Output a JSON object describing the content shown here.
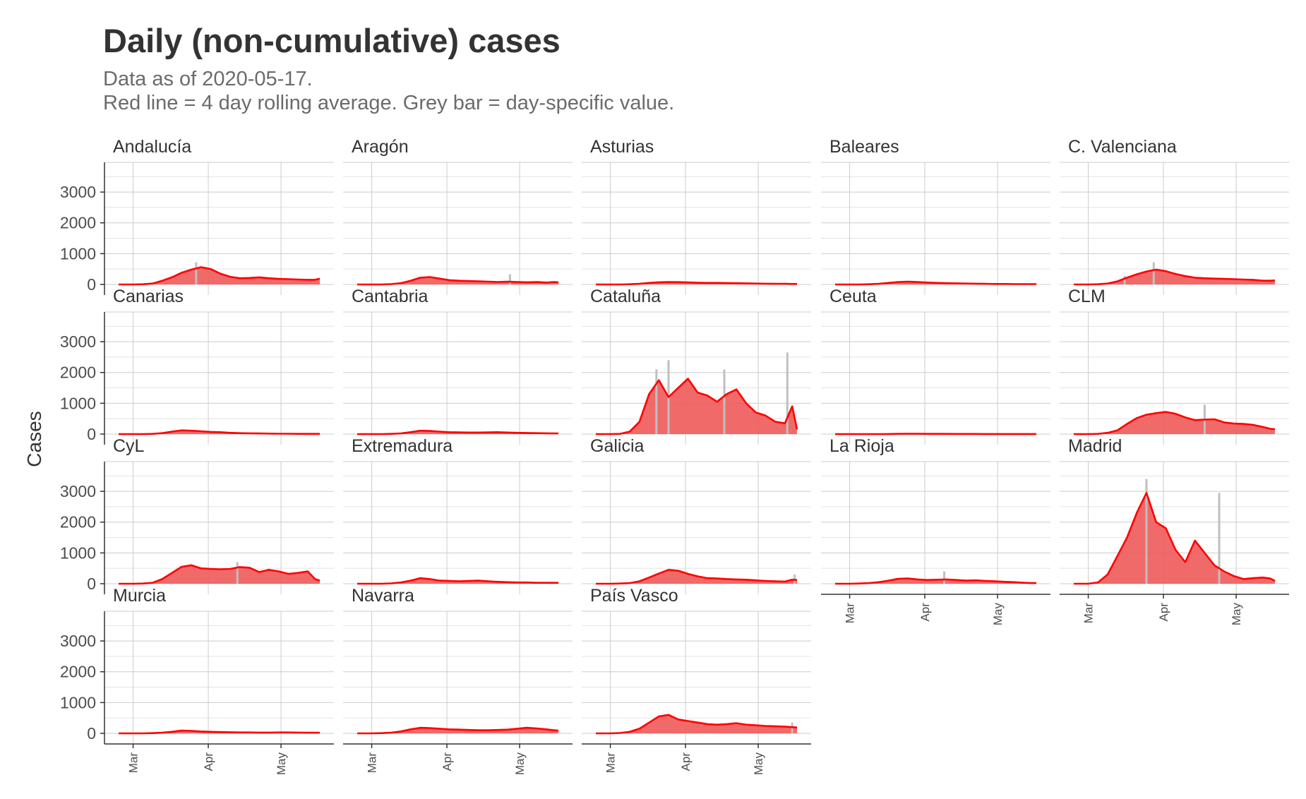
{
  "title": "Daily (non-cumulative) cases",
  "subtitle_line1": "Data as of 2020-05-17.",
  "subtitle_line2": "Red line = 4 day rolling average. Grey bar = day-specific value.",
  "colors": {
    "line": "#ff0000",
    "area": "#ef5a5a",
    "bar": "#bfbfbf",
    "grid": "#cccccc",
    "axis": "#333333",
    "text": "#333333"
  },
  "chart_data": {
    "type": "area",
    "ylabel": "Cases",
    "xlabel": "",
    "ylim": [
      0,
      3500
    ],
    "y_ticks": [
      0,
      1000,
      2000,
      3000
    ],
    "x_range": [
      "2020-02-24",
      "2020-05-17"
    ],
    "x_ticks": [
      {
        "date": "2020-03-01",
        "label": "Mar"
      },
      {
        "date": "2020-04-01",
        "label": "Apr"
      },
      {
        "date": "2020-05-01",
        "label": "May"
      }
    ],
    "grid": true,
    "facet_layout": {
      "columns": 5
    },
    "panel_dates": [
      "2020-02-24",
      "2020-03-01",
      "2020-03-05",
      "2020-03-09",
      "2020-03-13",
      "2020-03-17",
      "2020-03-21",
      "2020-03-25",
      "2020-03-29",
      "2020-04-02",
      "2020-04-06",
      "2020-04-10",
      "2020-04-14",
      "2020-04-18",
      "2020-04-22",
      "2020-04-26",
      "2020-04-30",
      "2020-05-04",
      "2020-05-08",
      "2020-05-12",
      "2020-05-15",
      "2020-05-17"
    ],
    "panels": [
      {
        "name": "Andalucía",
        "rolling_avg": [
          0,
          0,
          5,
          30,
          120,
          230,
          380,
          480,
          560,
          500,
          350,
          250,
          200,
          210,
          230,
          200,
          180,
          170,
          160,
          150,
          150,
          190
        ],
        "daily_peaks": [
          {
            "date": "2020-03-27",
            "value": 720
          }
        ]
      },
      {
        "name": "Aragón",
        "rolling_avg": [
          0,
          0,
          0,
          10,
          40,
          120,
          220,
          240,
          190,
          140,
          120,
          110,
          100,
          90,
          80,
          90,
          80,
          70,
          80,
          60,
          80,
          70
        ],
        "daily_peaks": [
          {
            "date": "2020-04-27",
            "value": 330
          }
        ]
      },
      {
        "name": "Asturias",
        "rolling_avg": [
          0,
          0,
          0,
          5,
          20,
          50,
          70,
          80,
          75,
          65,
          55,
          50,
          50,
          45,
          40,
          35,
          30,
          25,
          20,
          20,
          15,
          15
        ],
        "daily_peaks": []
      },
      {
        "name": "Baleares",
        "rolling_avg": [
          0,
          0,
          0,
          5,
          20,
          50,
          80,
          90,
          80,
          60,
          50,
          40,
          35,
          30,
          25,
          20,
          15,
          15,
          10,
          10,
          10,
          10
        ],
        "daily_peaks": []
      },
      {
        "name": "C. Valenciana",
        "rolling_avg": [
          0,
          0,
          5,
          30,
          100,
          220,
          330,
          420,
          480,
          430,
          340,
          270,
          220,
          200,
          190,
          180,
          170,
          160,
          150,
          120,
          120,
          130
        ],
        "daily_peaks": [
          {
            "date": "2020-03-28",
            "value": 720
          },
          {
            "date": "2020-03-16",
            "value": 280
          }
        ]
      },
      {
        "name": "Canarias",
        "rolling_avg": [
          0,
          0,
          0,
          5,
          30,
          80,
          120,
          110,
          90,
          70,
          60,
          40,
          30,
          25,
          20,
          15,
          10,
          10,
          5,
          5,
          5,
          5
        ],
        "daily_peaks": []
      },
      {
        "name": "Cantabria",
        "rolling_avg": [
          0,
          0,
          0,
          5,
          20,
          60,
          110,
          100,
          80,
          60,
          55,
          50,
          50,
          55,
          60,
          50,
          40,
          35,
          30,
          25,
          20,
          20
        ],
        "daily_peaks": []
      },
      {
        "name": "Cataluña",
        "rolling_avg": [
          0,
          0,
          5,
          80,
          400,
          1300,
          1750,
          1200,
          1500,
          1800,
          1350,
          1250,
          1050,
          1300,
          1450,
          1000,
          700,
          600,
          400,
          350,
          900,
          150
        ],
        "daily_peaks": [
          {
            "date": "2020-03-20",
            "value": 2100
          },
          {
            "date": "2020-03-25",
            "value": 2400
          },
          {
            "date": "2020-04-17",
            "value": 2100
          },
          {
            "date": "2020-05-13",
            "value": 2650
          }
        ]
      },
      {
        "name": "Ceuta",
        "rolling_avg": [
          0,
          0,
          0,
          0,
          0,
          2,
          5,
          8,
          8,
          6,
          5,
          5,
          4,
          3,
          3,
          2,
          2,
          2,
          2,
          1,
          1,
          1
        ],
        "daily_peaks": []
      },
      {
        "name": "CLM",
        "rolling_avg": [
          0,
          0,
          5,
          40,
          120,
          330,
          520,
          630,
          680,
          720,
          660,
          540,
          450,
          470,
          480,
          380,
          340,
          330,
          300,
          230,
          170,
          160
        ],
        "daily_peaks": [
          {
            "date": "2020-04-18",
            "value": 950
          }
        ]
      },
      {
        "name": "CyL",
        "rolling_avg": [
          0,
          0,
          5,
          30,
          150,
          350,
          550,
          600,
          500,
          480,
          470,
          480,
          540,
          520,
          380,
          450,
          400,
          320,
          350,
          400,
          150,
          100
        ],
        "daily_peaks": [
          {
            "date": "2020-04-13",
            "value": 700
          }
        ]
      },
      {
        "name": "Extremadura",
        "rolling_avg": [
          0,
          0,
          0,
          10,
          40,
          100,
          180,
          150,
          100,
          90,
          80,
          90,
          100,
          80,
          60,
          50,
          40,
          40,
          30,
          30,
          30,
          30
        ],
        "daily_peaks": []
      },
      {
        "name": "Galicia",
        "rolling_avg": [
          0,
          0,
          5,
          20,
          80,
          200,
          330,
          450,
          420,
          320,
          240,
          180,
          170,
          150,
          140,
          130,
          110,
          90,
          80,
          70,
          130,
          120
        ],
        "daily_peaks": [
          {
            "date": "2020-05-16",
            "value": 300
          }
        ]
      },
      {
        "name": "La Rioja",
        "rolling_avg": [
          0,
          0,
          5,
          20,
          50,
          100,
          160,
          170,
          140,
          120,
          130,
          140,
          120,
          100,
          110,
          90,
          80,
          60,
          50,
          30,
          20,
          20
        ],
        "daily_peaks": [
          {
            "date": "2020-04-09",
            "value": 400
          }
        ]
      },
      {
        "name": "Madrid",
        "rolling_avg": [
          0,
          0,
          40,
          300,
          900,
          1500,
          2300,
          2950,
          2000,
          1800,
          1100,
          700,
          1400,
          1000,
          600,
          400,
          250,
          150,
          180,
          200,
          170,
          90
        ],
        "daily_peaks": [
          {
            "date": "2020-03-25",
            "value": 3400
          },
          {
            "date": "2020-04-24",
            "value": 2950
          }
        ]
      },
      {
        "name": "Murcia",
        "rolling_avg": [
          0,
          0,
          0,
          5,
          20,
          50,
          90,
          80,
          60,
          50,
          40,
          35,
          30,
          30,
          25,
          25,
          30,
          30,
          25,
          20,
          20,
          20
        ],
        "daily_peaks": []
      },
      {
        "name": "Navarra",
        "rolling_avg": [
          0,
          0,
          5,
          20,
          60,
          130,
          180,
          170,
          150,
          130,
          120,
          110,
          100,
          100,
          110,
          120,
          150,
          180,
          160,
          130,
          100,
          90
        ],
        "daily_peaks": []
      },
      {
        "name": "País Vasco",
        "rolling_avg": [
          0,
          0,
          10,
          50,
          150,
          350,
          550,
          600,
          450,
          400,
          350,
          300,
          280,
          300,
          330,
          280,
          260,
          240,
          230,
          220,
          200,
          190
        ],
        "daily_peaks": [
          {
            "date": "2020-05-15",
            "value": 350
          }
        ]
      }
    ]
  }
}
